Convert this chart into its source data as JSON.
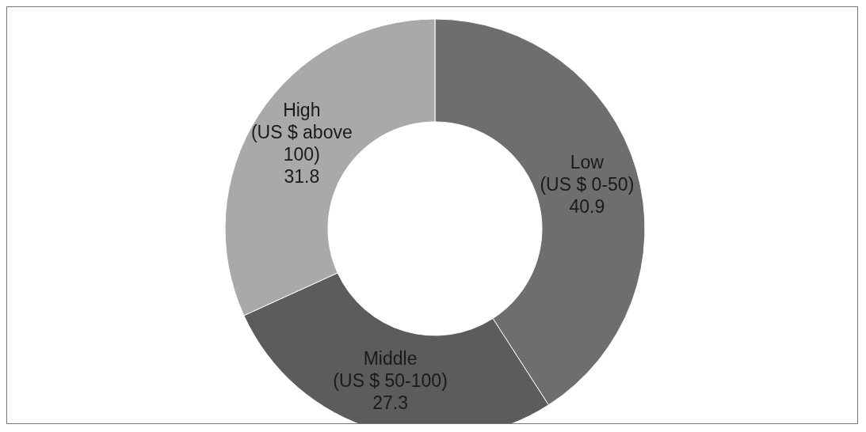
{
  "chart_data": {
    "type": "donut",
    "categories": [
      "Low (US $ 0-50)",
      "Middle (US $ 50-100)",
      "High (US $ above 100)"
    ],
    "values": [
      40.9,
      27.3,
      31.8
    ],
    "colors": [
      "#6e6e6e",
      "#5c5c5c",
      "#a9a9a9"
    ],
    "data_labels": true
  }
}
